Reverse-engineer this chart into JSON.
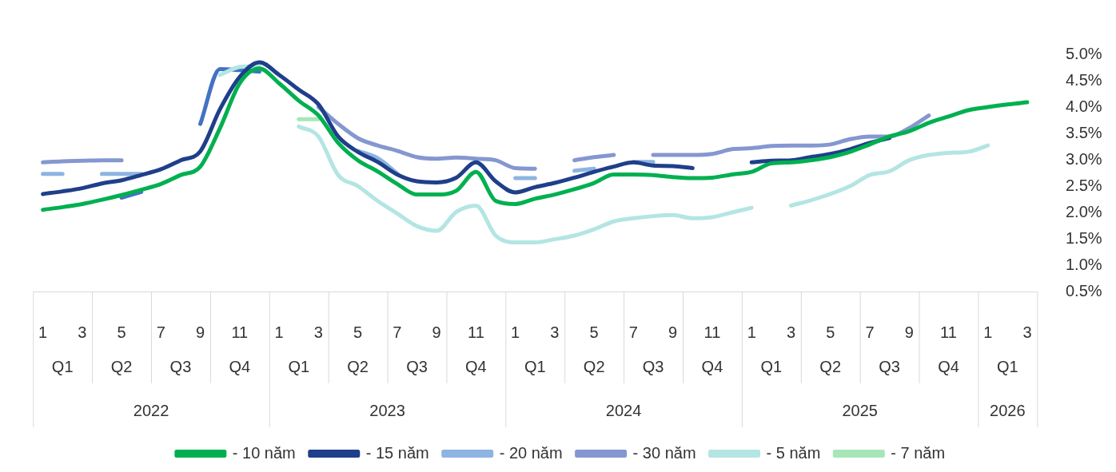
{
  "chart_data": {
    "type": "line",
    "legend": "bottom",
    "categories": [
      "1",
      null,
      "3",
      null,
      "5",
      null,
      "7",
      null,
      "9",
      null,
      "11",
      null,
      "1",
      null,
      "3",
      null,
      "5",
      null,
      "7",
      null,
      "9",
      null,
      "11",
      null,
      "1",
      null,
      "3",
      null,
      "5",
      null,
      "7",
      null,
      "9",
      null,
      "11",
      null,
      "1",
      null,
      "3",
      null,
      "5",
      null,
      "7",
      null,
      "9",
      null,
      "11",
      null,
      "1",
      null,
      "3"
    ],
    "ylim": [
      0.5,
      5.0
    ],
    "yticks": [
      {
        "value": 0.5,
        "label": "0.5%"
      },
      {
        "value": 1.0,
        "label": "1.0%"
      },
      {
        "value": 1.5,
        "label": "1.5%"
      },
      {
        "value": 2.0,
        "label": "2.0%"
      },
      {
        "value": 2.5,
        "label": "2.5%"
      },
      {
        "value": 3.0,
        "label": "3.0%"
      },
      {
        "value": 3.5,
        "label": "3.5%"
      },
      {
        "value": 4.0,
        "label": "4.0%"
      },
      {
        "value": 4.5,
        "label": "4.5%"
      },
      {
        "value": 5.0,
        "label": "5.0%"
      }
    ],
    "annotations": [
      "Q1",
      "Q2",
      "Q3",
      "Q4",
      "Q1",
      "Q2",
      "Q3",
      "Q4",
      "Q1",
      "Q2",
      "Q3",
      "Q4",
      "Q1",
      "Q2",
      "Q3",
      "Q4",
      "Q1",
      "2022",
      "2023",
      "2024",
      "2025",
      "2026"
    ],
    "series": [
      {
        "name": "- 10 năm",
        "color": "#00b050",
        "values": [
          2.05,
          2.1,
          2.16,
          2.24,
          2.33,
          2.43,
          2.54,
          2.71,
          2.87,
          3.6,
          4.45,
          4.73,
          4.45,
          4.12,
          3.84,
          3.32,
          2.99,
          2.78,
          2.54,
          2.34,
          2.34,
          2.41,
          2.77,
          2.22,
          2.16,
          2.26,
          2.34,
          2.44,
          2.56,
          2.72,
          2.72,
          2.71,
          2.67,
          2.65,
          2.66,
          2.72,
          2.77,
          2.93,
          2.95,
          2.99,
          3.05,
          3.15,
          3.29,
          3.44,
          3.54,
          3.7,
          3.82,
          3.94,
          4.0,
          4.05,
          4.09
        ]
      },
      {
        "name": "- 15 năm",
        "color": "#1f3f8a",
        "values": [
          2.35,
          2.4,
          2.46,
          2.55,
          2.61,
          2.71,
          2.82,
          2.99,
          3.16,
          3.96,
          4.57,
          4.85,
          4.61,
          4.33,
          4.05,
          3.44,
          3.15,
          2.96,
          2.72,
          2.59,
          2.57,
          2.66,
          2.95,
          2.59,
          2.38,
          2.48,
          2.56,
          2.66,
          2.77,
          2.87,
          2.95,
          2.89,
          2.88,
          2.84,
          null,
          null,
          2.95,
          2.98,
          2.99,
          3.05,
          3.11,
          3.2,
          3.32,
          3.41,
          null,
          null,
          null,
          null,
          null,
          null,
          null
        ]
      },
      {
        "name": "- 20 năm",
        "color": "#8db4e2",
        "values": [
          2.73,
          2.73,
          null,
          2.73,
          2.73,
          2.73,
          null,
          null,
          null,
          null,
          null,
          null,
          null,
          null,
          null,
          null,
          3.17,
          3.03,
          2.74,
          null,
          null,
          null,
          null,
          null,
          2.65,
          2.65,
          null,
          2.79,
          2.83,
          null,
          2.96,
          2.96,
          null,
          null,
          null,
          null,
          null,
          null,
          null,
          null,
          null,
          null,
          null,
          null,
          null,
          null,
          null,
          null,
          null,
          null,
          null
        ]
      },
      {
        "name": "- 30 năm",
        "color": "#8497d0",
        "values": [
          2.95,
          2.97,
          2.98,
          2.99,
          2.99,
          null,
          null,
          null,
          null,
          null,
          null,
          null,
          null,
          null,
          4.0,
          3.68,
          3.41,
          3.27,
          3.17,
          3.05,
          3.02,
          3.04,
          3.02,
          2.99,
          2.84,
          2.83,
          null,
          2.99,
          3.05,
          3.09,
          null,
          3.09,
          3.09,
          3.09,
          3.11,
          3.2,
          3.22,
          3.26,
          3.27,
          3.27,
          3.29,
          3.39,
          3.44,
          3.44,
          3.6,
          3.84,
          null,
          null,
          null,
          null,
          null
        ]
      },
      {
        "name": "- 5 năm",
        "color": "#b3e5e3",
        "values": [
          null,
          null,
          null,
          null,
          null,
          null,
          null,
          null,
          null,
          4.61,
          4.76,
          4.78,
          null,
          3.63,
          3.44,
          2.71,
          2.5,
          2.22,
          1.98,
          1.74,
          1.65,
          2.01,
          2.13,
          1.56,
          1.43,
          1.43,
          1.49,
          1.56,
          1.68,
          1.83,
          1.89,
          1.93,
          1.95,
          1.89,
          1.91,
          2.0,
          2.09,
          null,
          2.13,
          2.23,
          2.35,
          2.5,
          2.71,
          2.78,
          2.99,
          3.09,
          3.13,
          3.15,
          3.27,
          null,
          null
        ]
      },
      {
        "name": "- 7 năm",
        "color": "#a8e6b8",
        "values": [
          null,
          null,
          null,
          null,
          null,
          null,
          null,
          null,
          null,
          null,
          null,
          null,
          null,
          3.77,
          3.77,
          null,
          null,
          null,
          null,
          null,
          null,
          null,
          null,
          null,
          null,
          null,
          null,
          null,
          null,
          null,
          null,
          null,
          null,
          null,
          null,
          null,
          null,
          null,
          null,
          null,
          null,
          null,
          null,
          null,
          null,
          null,
          null,
          null,
          null,
          null,
          null
        ]
      },
      {
        "color": "#4472c4",
        "values": [
          null,
          null,
          null,
          null,
          2.28,
          2.39,
          null,
          null,
          3.68,
          4.72,
          4.7,
          4.67,
          null,
          null,
          null,
          null,
          null,
          null,
          null,
          null,
          null,
          null,
          null,
          null,
          null,
          null,
          null,
          null,
          null,
          null,
          null,
          null,
          null,
          null,
          null,
          null,
          null,
          null,
          null,
          null,
          null,
          null,
          null,
          null,
          null,
          null,
          null,
          null,
          null,
          null,
          null
        ]
      }
    ]
  }
}
